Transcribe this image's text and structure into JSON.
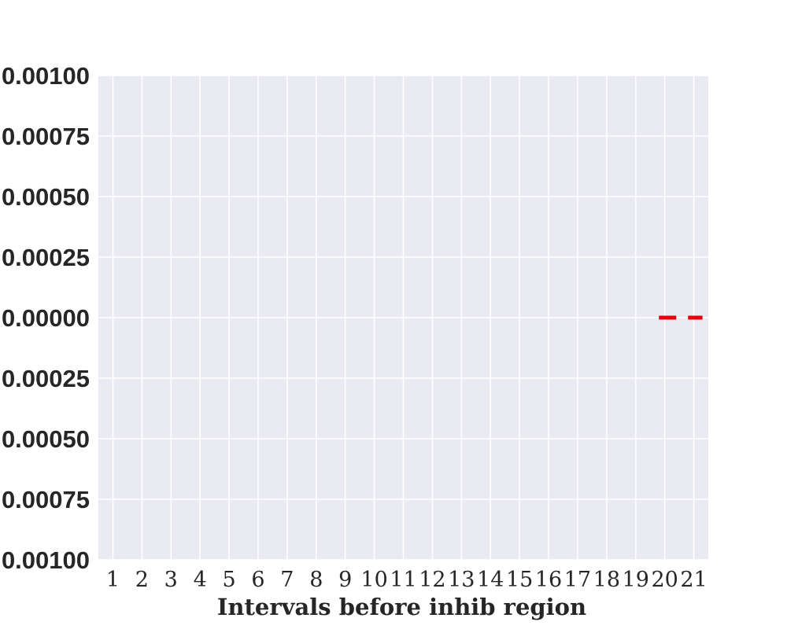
{
  "chart_data": {
    "type": "line",
    "title": "",
    "xlabel": "Intervals before inhib region",
    "ylabel": "",
    "x": [
      1,
      2,
      3,
      4,
      5,
      6,
      7,
      8,
      9,
      10,
      11,
      12,
      13,
      14,
      15,
      16,
      17,
      18,
      19,
      20,
      21
    ],
    "xticklabels": [
      "1",
      "2",
      "3",
      "4",
      "5",
      "6",
      "7",
      "8",
      "9",
      "10",
      "11",
      "12",
      "13",
      "14",
      "15",
      "16",
      "17",
      "18",
      "19",
      "20",
      "21"
    ],
    "yticks": [
      0.001,
      0.00075,
      0.0005,
      0.00025,
      0.0,
      -0.00025,
      -0.0005,
      -0.00075,
      -0.001
    ],
    "yticklabels": [
      "0.00100",
      "0.00075",
      "0.00050",
      "0.00025",
      "0.00000",
      "0.00025",
      "0.00050",
      "0.00075",
      "0.00100"
    ],
    "ylim": [
      -0.001,
      0.001
    ],
    "xlim": [
      0.5,
      21.5
    ],
    "grid": true,
    "series": [
      {
        "line_style": "dashed",
        "color": "#e8000b",
        "x": [
          19.8,
          21.3
        ],
        "y": [
          0.0,
          0.0
        ]
      }
    ]
  },
  "colors": {
    "plot_background": "#eaeaf2",
    "grid": "#ffffff",
    "text": "#262626"
  }
}
